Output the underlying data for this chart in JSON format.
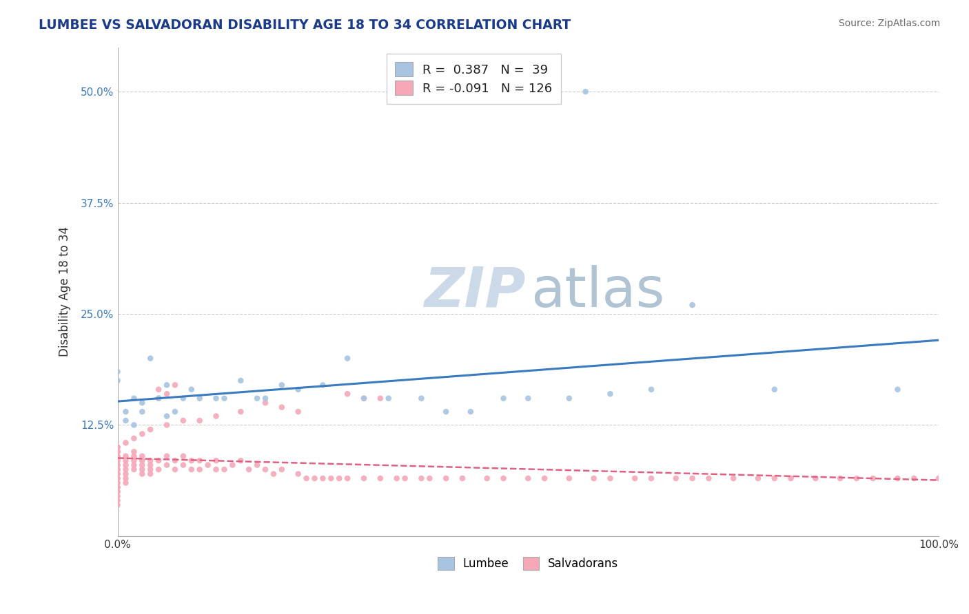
{
  "title": "LUMBEE VS SALVADORAN DISABILITY AGE 18 TO 34 CORRELATION CHART",
  "source": "Source: ZipAtlas.com",
  "ylabel": "Disability Age 18 to 34",
  "xlim": [
    0.0,
    1.0
  ],
  "ylim": [
    0.0,
    0.55
  ],
  "xtick_labels": [
    "0.0%",
    "100.0%"
  ],
  "ytick_labels": [
    "12.5%",
    "25.0%",
    "37.5%",
    "50.0%"
  ],
  "ytick_values": [
    0.125,
    0.25,
    0.375,
    0.5
  ],
  "lumbee_R": 0.387,
  "lumbee_N": 39,
  "salvadoran_R": -0.091,
  "salvadoran_N": 126,
  "lumbee_color": "#a8c4e0",
  "salvadoran_color": "#f4a8b8",
  "lumbee_line_color": "#3a7abf",
  "salvadoran_line_color": "#e06080",
  "background_color": "#ffffff",
  "grid_color": "#cccccc",
  "lumbee_scatter_x": [
    0.0,
    0.0,
    0.01,
    0.01,
    0.02,
    0.02,
    0.03,
    0.03,
    0.04,
    0.05,
    0.06,
    0.06,
    0.07,
    0.08,
    0.09,
    0.1,
    0.12,
    0.13,
    0.15,
    0.17,
    0.18,
    0.2,
    0.22,
    0.25,
    0.28,
    0.3,
    0.33,
    0.37,
    0.4,
    0.43,
    0.47,
    0.5,
    0.55,
    0.6,
    0.65,
    0.7,
    0.8,
    0.95,
    0.57
  ],
  "lumbee_scatter_y": [
    0.175,
    0.185,
    0.14,
    0.13,
    0.155,
    0.125,
    0.15,
    0.14,
    0.2,
    0.155,
    0.17,
    0.135,
    0.14,
    0.155,
    0.165,
    0.155,
    0.155,
    0.155,
    0.175,
    0.155,
    0.155,
    0.17,
    0.165,
    0.17,
    0.2,
    0.155,
    0.155,
    0.155,
    0.14,
    0.14,
    0.155,
    0.155,
    0.155,
    0.16,
    0.165,
    0.26,
    0.165,
    0.165,
    0.5
  ],
  "salvadoran_scatter_x": [
    0.0,
    0.0,
    0.0,
    0.0,
    0.0,
    0.0,
    0.0,
    0.0,
    0.0,
    0.0,
    0.0,
    0.0,
    0.0,
    0.01,
    0.01,
    0.01,
    0.01,
    0.01,
    0.01,
    0.01,
    0.02,
    0.02,
    0.02,
    0.02,
    0.02,
    0.03,
    0.03,
    0.03,
    0.03,
    0.03,
    0.04,
    0.04,
    0.04,
    0.04,
    0.05,
    0.05,
    0.05,
    0.05,
    0.06,
    0.06,
    0.06,
    0.07,
    0.07,
    0.07,
    0.08,
    0.08,
    0.09,
    0.09,
    0.1,
    0.1,
    0.11,
    0.12,
    0.12,
    0.13,
    0.14,
    0.15,
    0.16,
    0.17,
    0.18,
    0.19,
    0.2,
    0.22,
    0.23,
    0.24,
    0.25,
    0.26,
    0.27,
    0.28,
    0.3,
    0.32,
    0.34,
    0.35,
    0.37,
    0.38,
    0.4,
    0.42,
    0.45,
    0.47,
    0.5,
    0.52,
    0.55,
    0.58,
    0.6,
    0.63,
    0.65,
    0.68,
    0.7,
    0.72,
    0.75,
    0.78,
    0.8,
    0.82,
    0.85,
    0.88,
    0.9,
    0.92,
    0.95,
    0.97,
    1.0,
    0.28,
    0.3,
    0.32,
    0.18,
    0.2,
    0.22,
    0.15,
    0.12,
    0.1,
    0.08,
    0.06,
    0.04,
    0.03,
    0.02,
    0.01,
    0.0,
    0.0,
    0.0,
    0.0,
    0.0,
    0.0,
    0.0,
    0.0,
    0.0,
    0.0,
    0.0,
    0.0
  ],
  "salvadoran_scatter_y": [
    0.095,
    0.085,
    0.09,
    0.08,
    0.07,
    0.075,
    0.065,
    0.06,
    0.055,
    0.05,
    0.045,
    0.04,
    0.035,
    0.09,
    0.085,
    0.08,
    0.075,
    0.07,
    0.065,
    0.06,
    0.095,
    0.09,
    0.085,
    0.08,
    0.075,
    0.09,
    0.085,
    0.08,
    0.075,
    0.07,
    0.085,
    0.08,
    0.075,
    0.07,
    0.165,
    0.155,
    0.085,
    0.075,
    0.16,
    0.09,
    0.08,
    0.17,
    0.085,
    0.075,
    0.09,
    0.08,
    0.085,
    0.075,
    0.085,
    0.075,
    0.08,
    0.085,
    0.075,
    0.075,
    0.08,
    0.085,
    0.075,
    0.08,
    0.075,
    0.07,
    0.075,
    0.07,
    0.065,
    0.065,
    0.065,
    0.065,
    0.065,
    0.065,
    0.065,
    0.065,
    0.065,
    0.065,
    0.065,
    0.065,
    0.065,
    0.065,
    0.065,
    0.065,
    0.065,
    0.065,
    0.065,
    0.065,
    0.065,
    0.065,
    0.065,
    0.065,
    0.065,
    0.065,
    0.065,
    0.065,
    0.065,
    0.065,
    0.065,
    0.065,
    0.065,
    0.065,
    0.065,
    0.065,
    0.065,
    0.16,
    0.155,
    0.155,
    0.15,
    0.145,
    0.14,
    0.14,
    0.135,
    0.13,
    0.13,
    0.125,
    0.12,
    0.115,
    0.11,
    0.105,
    0.1,
    0.1,
    0.095,
    0.09,
    0.085,
    0.08,
    0.075,
    0.07,
    0.065,
    0.06,
    0.055,
    0.05
  ]
}
